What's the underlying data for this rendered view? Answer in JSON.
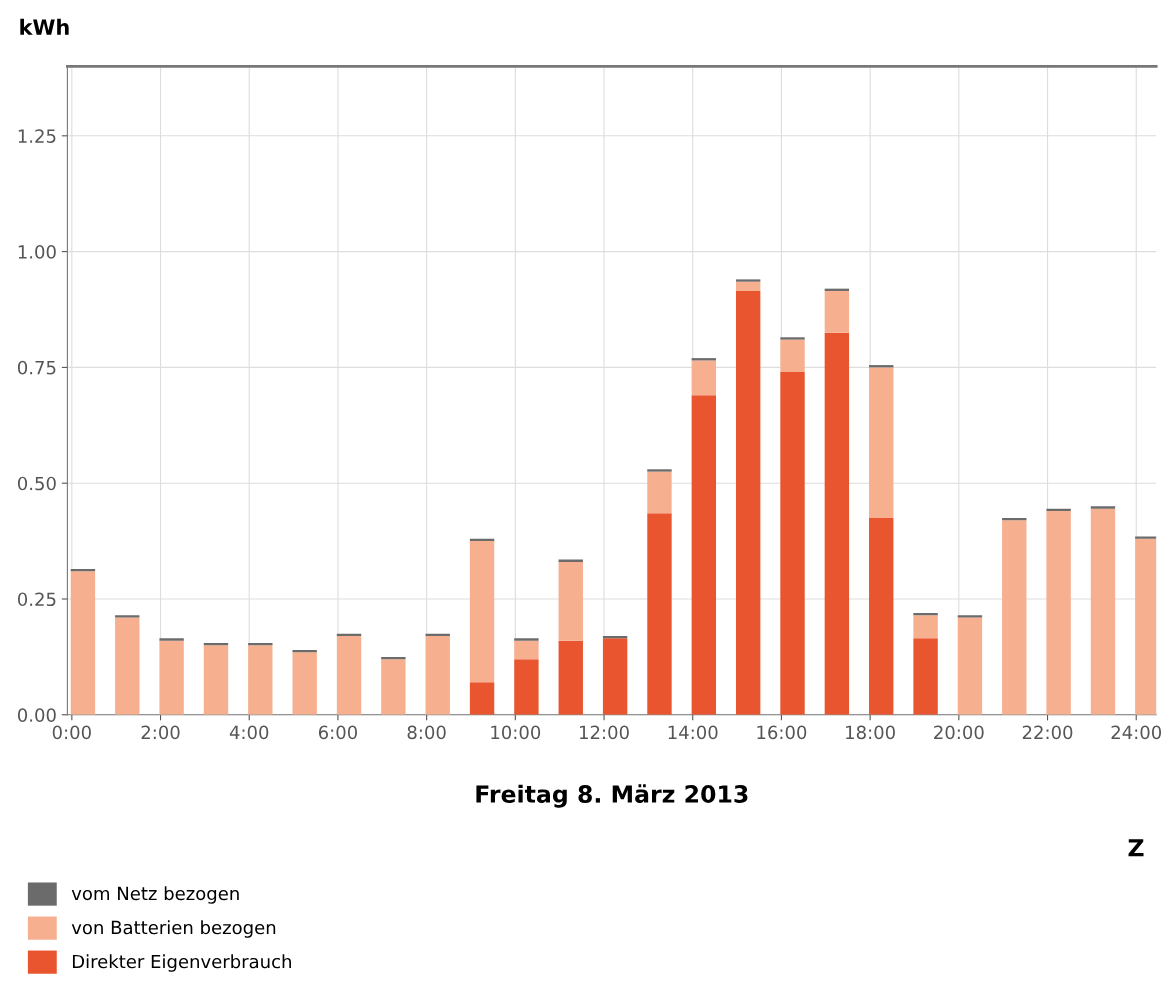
{
  "chart_data": {
    "type": "bar",
    "stacked": true,
    "ylabel": "kWh",
    "xlabel": "Freitag 8. März 2013",
    "annotations": [
      "Z"
    ],
    "x": [
      0.25,
      1.25,
      2.25,
      3.25,
      4.25,
      5.25,
      6.25,
      7.25,
      8.25,
      9.25,
      10.25,
      11.25,
      12.25,
      13.25,
      14.25,
      15.25,
      16.25,
      17.25,
      18.25,
      19.25,
      20.25,
      21.25,
      22.25,
      23.25,
      24.25
    ],
    "xlim": [
      -0.1,
      24.45
    ],
    "xticks": [
      {
        "value": 0,
        "label": "0:00"
      },
      {
        "value": 2,
        "label": "2:00"
      },
      {
        "value": 4,
        "label": "4:00"
      },
      {
        "value": 6,
        "label": "6:00"
      },
      {
        "value": 8,
        "label": "8:00"
      },
      {
        "value": 10,
        "label": "10:00"
      },
      {
        "value": 12,
        "label": "12:00"
      },
      {
        "value": 14,
        "label": "14:00"
      },
      {
        "value": 16,
        "label": "16:00"
      },
      {
        "value": 18,
        "label": "18:00"
      },
      {
        "value": 20,
        "label": "20:00"
      },
      {
        "value": 22,
        "label": "22:00"
      },
      {
        "value": 24,
        "label": "24:00"
      }
    ],
    "ylim": [
      0,
      1.4
    ],
    "yticks": [
      {
        "value": 0,
        "label": "0.00"
      },
      {
        "value": 0.25,
        "label": "0.25"
      },
      {
        "value": 0.5,
        "label": "0.50"
      },
      {
        "value": 0.75,
        "label": "0.75"
      },
      {
        "value": 1,
        "label": "1.00"
      },
      {
        "value": 1.25,
        "label": "1.25"
      }
    ],
    "grid": true,
    "legend": "bottom",
    "series": [
      {
        "name": "Direkter Eigenverbrauch",
        "color": "#e8552f",
        "values": [
          0,
          0,
          0,
          0,
          0,
          0,
          0,
          0,
          0,
          0.07,
          0.12,
          0.16,
          0.165,
          0.435,
          0.69,
          0.915,
          0.74,
          0.825,
          0.425,
          0.165,
          0,
          0,
          0,
          0,
          0
        ]
      },
      {
        "name": "von Batterien bezogen",
        "color": "#f6b090",
        "values": [
          0.31,
          0.21,
          0.16,
          0.15,
          0.15,
          0.135,
          0.17,
          0.12,
          0.17,
          0.305,
          0.04,
          0.17,
          0,
          0.09,
          0.075,
          0.02,
          0.07,
          0.09,
          0.325,
          0.05,
          0.21,
          0.42,
          0.44,
          0.445,
          0.38
        ]
      },
      {
        "name": "vom Netz bezogen",
        "color": "#6b6b6b",
        "values": [
          0.005,
          0.005,
          0.005,
          0.005,
          0.005,
          0.005,
          0.005,
          0.005,
          0.005,
          0.005,
          0.005,
          0.005,
          0.005,
          0.005,
          0.005,
          0.005,
          0.005,
          0.005,
          0.005,
          0.005,
          0.005,
          0.005,
          0.005,
          0.005,
          0.005
        ]
      }
    ]
  }
}
